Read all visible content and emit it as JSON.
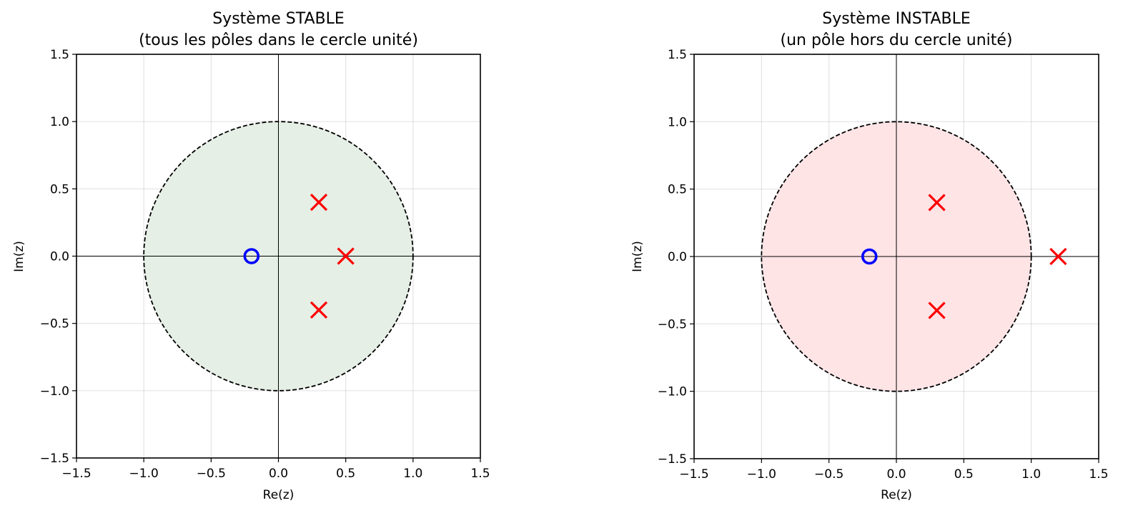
{
  "chart_data": [
    {
      "type": "scatter",
      "title_line1": "Système STABLE",
      "title_line2": "(tous les pôles dans le cercle unité)",
      "xlabel": "Re(z)",
      "ylabel": "Im(z)",
      "xlim": [
        -1.5,
        1.5
      ],
      "ylim": [
        -1.5,
        1.5
      ],
      "ticks": [
        "-1.5",
        "-1.0",
        "-0.5",
        "0.0",
        "0.5",
        "1.0",
        "1.5"
      ],
      "grid": true,
      "unit_circle": {
        "radius": 1.0,
        "fill": "#e5efe5",
        "stroke": "#000000",
        "dashed": true
      },
      "series": [
        {
          "marker": "x",
          "color": "#ff0000",
          "points": [
            [
              0.3,
              0.4
            ],
            [
              0.5,
              0.0
            ],
            [
              0.3,
              -0.4
            ]
          ]
        },
        {
          "marker": "o",
          "color": "#0000ff",
          "points": [
            [
              -0.2,
              0.0
            ]
          ]
        }
      ]
    },
    {
      "type": "scatter",
      "title_line1": "Système INSTABLE",
      "title_line2": "(un pôle hors du cercle unité)",
      "xlabel": "Re(z)",
      "ylabel": "Im(z)",
      "xlim": [
        -1.5,
        1.5
      ],
      "ylim": [
        -1.5,
        1.5
      ],
      "ticks": [
        "-1.5",
        "-1.0",
        "-0.5",
        "0.0",
        "0.5",
        "1.0",
        "1.5"
      ],
      "grid": true,
      "unit_circle": {
        "radius": 1.0,
        "fill": "#ffe4e6",
        "stroke": "#000000",
        "dashed": true
      },
      "series": [
        {
          "marker": "x",
          "color": "#ff0000",
          "points": [
            [
              0.3,
              0.4
            ],
            [
              0.3,
              -0.4
            ],
            [
              1.2,
              0.0
            ]
          ]
        },
        {
          "marker": "o",
          "color": "#0000ff",
          "points": [
            [
              -0.2,
              0.0
            ]
          ]
        }
      ]
    }
  ]
}
